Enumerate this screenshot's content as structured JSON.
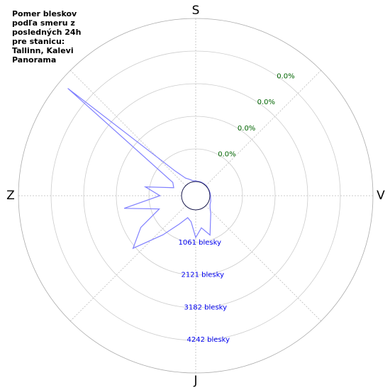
{
  "chart_data": {
    "type": "polar-line",
    "title_lines": [
      "Pomer bleskov",
      "podľa smeru z",
      "posledných 24h",
      "pre stanicu:",
      "Tallinn, Kalevi",
      "Panorama"
    ],
    "direction_labels": [
      "S",
      "V",
      "J",
      "Z"
    ],
    "x": [
      0,
      10,
      20,
      30,
      40,
      50,
      60,
      70,
      80,
      90,
      100,
      110,
      120,
      130,
      140,
      150,
      160,
      170,
      180,
      190,
      200,
      210,
      220,
      230,
      240,
      250,
      260,
      270,
      280,
      290,
      300,
      310,
      320,
      330,
      340,
      350
    ],
    "series": [
      {
        "color": "#8080ff",
        "values": [
          20,
          10,
          15,
          10,
          10,
          10,
          5,
          10,
          15,
          20,
          30,
          60,
          80,
          150,
          300,
          500,
          900,
          600,
          900,
          400,
          300,
          600,
          1200,
          2200,
          1600,
          800,
          1900,
          700,
          1200,
          300,
          400,
          4970,
          600,
          200,
          100,
          30
        ]
      }
    ],
    "ylim": [
      0,
      5303
    ],
    "yticks": [
      {
        "value": 1061,
        "label": "1061 blesky"
      },
      {
        "value": 2121,
        "label": "2121 blesky"
      },
      {
        "value": 3182,
        "label": "3182 blesky"
      },
      {
        "value": 4242,
        "label": "4242 blesky"
      }
    ],
    "percent_labels": [
      "0.0%",
      "0.0%",
      "0.0%",
      "0.0%"
    ],
    "grid": true
  }
}
